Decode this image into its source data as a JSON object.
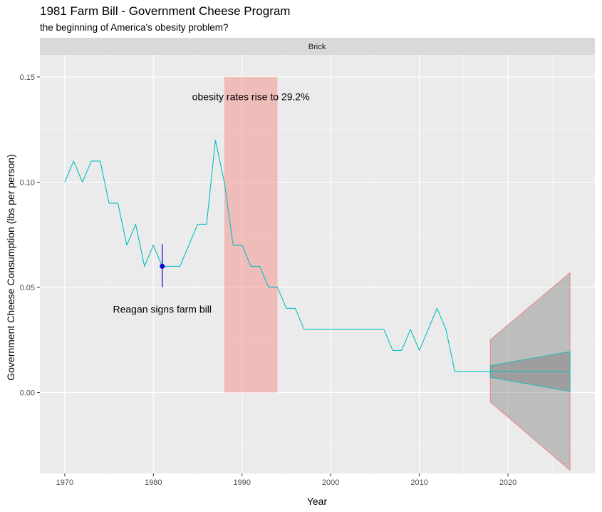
{
  "title": "1981 Farm Bill - Government Cheese Program",
  "subtitle": "the beginning of America's obesity problem?",
  "chart_data": {
    "type": "line",
    "facet_label": "Brick",
    "xlabel": "Year",
    "ylabel": "Government Cheese Consumption (lbs per person)",
    "xlim": [
      1967.2,
      2029.8
    ],
    "ylim": [
      -0.0385,
      0.1605
    ],
    "x_ticks": [
      1970,
      1980,
      1990,
      2000,
      2010,
      2020
    ],
    "y_ticks": [
      0.0,
      0.05,
      0.1,
      0.15
    ],
    "y_tick_labels": [
      "0.00",
      "0.05",
      "0.10",
      "0.15"
    ],
    "grid": true,
    "series": [
      {
        "x": [
          1970,
          1971,
          1972,
          1973,
          1974,
          1975,
          1976,
          1977,
          1978,
          1979,
          1980,
          1981,
          1982,
          1983,
          1984,
          1985,
          1986,
          1987,
          1988,
          1989,
          1990,
          1991,
          1992,
          1993,
          1994,
          1995,
          1996,
          1997,
          1998,
          1999,
          2000,
          2001,
          2002,
          2003,
          2004,
          2005,
          2006,
          2007,
          2008,
          2009,
          2010,
          2011,
          2012,
          2013,
          2014,
          2015,
          2016,
          2017,
          2018
        ],
        "values": [
          0.1,
          0.11,
          0.1,
          0.11,
          0.11,
          0.09,
          0.09,
          0.07,
          0.08,
          0.06,
          0.07,
          0.06,
          0.06,
          0.06,
          0.07,
          0.08,
          0.08,
          0.12,
          0.1,
          0.07,
          0.07,
          0.06,
          0.06,
          0.05,
          0.05,
          0.04,
          0.04,
          0.03,
          0.03,
          0.03,
          0.03,
          0.03,
          0.03,
          0.03,
          0.03,
          0.03,
          0.03,
          0.02,
          0.02,
          0.03,
          0.02,
          0.03,
          0.04,
          0.03,
          0.01,
          0.01,
          0.01,
          0.01,
          0.01
        ],
        "color": "#00BFC4"
      }
    ],
    "forecast": {
      "x": [
        2018,
        2027
      ],
      "mean": [
        0.01,
        0.01
      ],
      "inner_lower": [
        0.0072,
        0.0005
      ],
      "inner_upper": [
        0.0128,
        0.0195
      ],
      "outer_lower": [
        -0.0045,
        -0.037
      ],
      "outer_upper": [
        0.025,
        0.057
      ],
      "fill_color": "#7f7f7f",
      "outer_border_color": "#F8766D",
      "inner_border_color": "#00BFC4"
    },
    "highlight_rect": {
      "xmin": 1988,
      "xmax": 1994,
      "ymin": 0.0,
      "ymax": 0.15,
      "color": "#F8766D"
    },
    "point": {
      "x": 1981,
      "y": 0.06,
      "ymin": 0.05,
      "ymax": 0.0705,
      "color": "#0000CD"
    },
    "annotations": [
      {
        "text": "obesity rates rise to 29.2%",
        "x": 1991,
        "y": 0.139
      },
      {
        "text": "Reagan signs farm bill",
        "x": 1981,
        "y": 0.038
      }
    ]
  }
}
